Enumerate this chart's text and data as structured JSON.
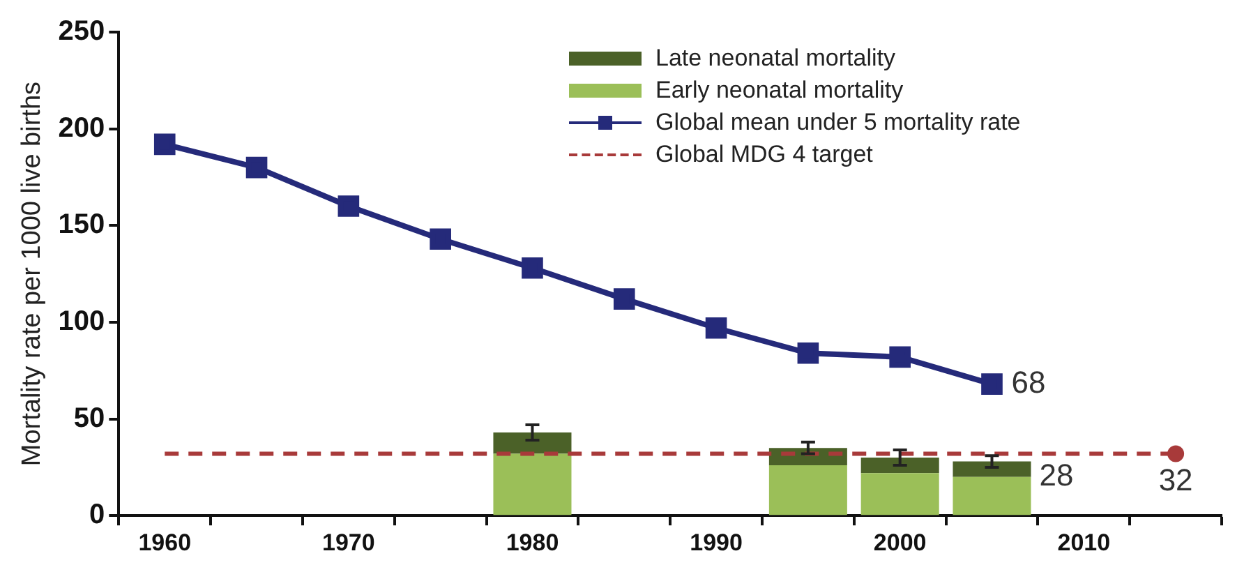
{
  "chart_data": {
    "type": "bar",
    "stacked": true,
    "ylabel": "Mortality rate per 1000 live births",
    "categories": [
      "1960",
      null,
      "1970",
      null,
      "1980",
      null,
      "1990",
      null,
      "2000",
      null,
      "2010",
      null
    ],
    "series": [
      {
        "name": "Early neonatal mortality",
        "color": "#9bbf58",
        "values": [
          null,
          null,
          null,
          null,
          32,
          null,
          null,
          26,
          22,
          20,
          null,
          null
        ]
      },
      {
        "name": "Late neonatal mortality",
        "color": "#4b6128",
        "values": [
          null,
          null,
          null,
          null,
          11,
          null,
          null,
          9,
          8,
          8,
          null,
          null
        ],
        "errors": [
          null,
          null,
          null,
          null,
          4,
          null,
          null,
          3,
          4,
          3,
          null,
          null
        ]
      },
      {
        "name": "Global mean under 5 mortality rate",
        "type": "line",
        "color": "#252a7a",
        "marker": "square",
        "values": [
          192,
          180,
          160,
          143,
          128,
          112,
          97,
          84,
          82,
          68,
          null,
          null
        ],
        "value_labels": [
          null,
          null,
          null,
          null,
          null,
          null,
          null,
          null,
          null,
          "68",
          null,
          null
        ]
      }
    ],
    "totals": [
      null,
      null,
      null,
      null,
      null,
      null,
      null,
      null,
      null,
      "28",
      null,
      null
    ],
    "ref_lines": [
      {
        "axis": "y",
        "value": 32,
        "label": "Global MDG 4 target",
        "color": "#a83a3a",
        "line_style": "dashed"
      }
    ],
    "annotations": [
      {
        "text": "32",
        "y": 32
      }
    ],
    "ylim": [
      0,
      250
    ],
    "yticks": [
      0,
      50,
      100,
      150,
      200,
      250
    ],
    "grid": false,
    "legend": "top right"
  }
}
